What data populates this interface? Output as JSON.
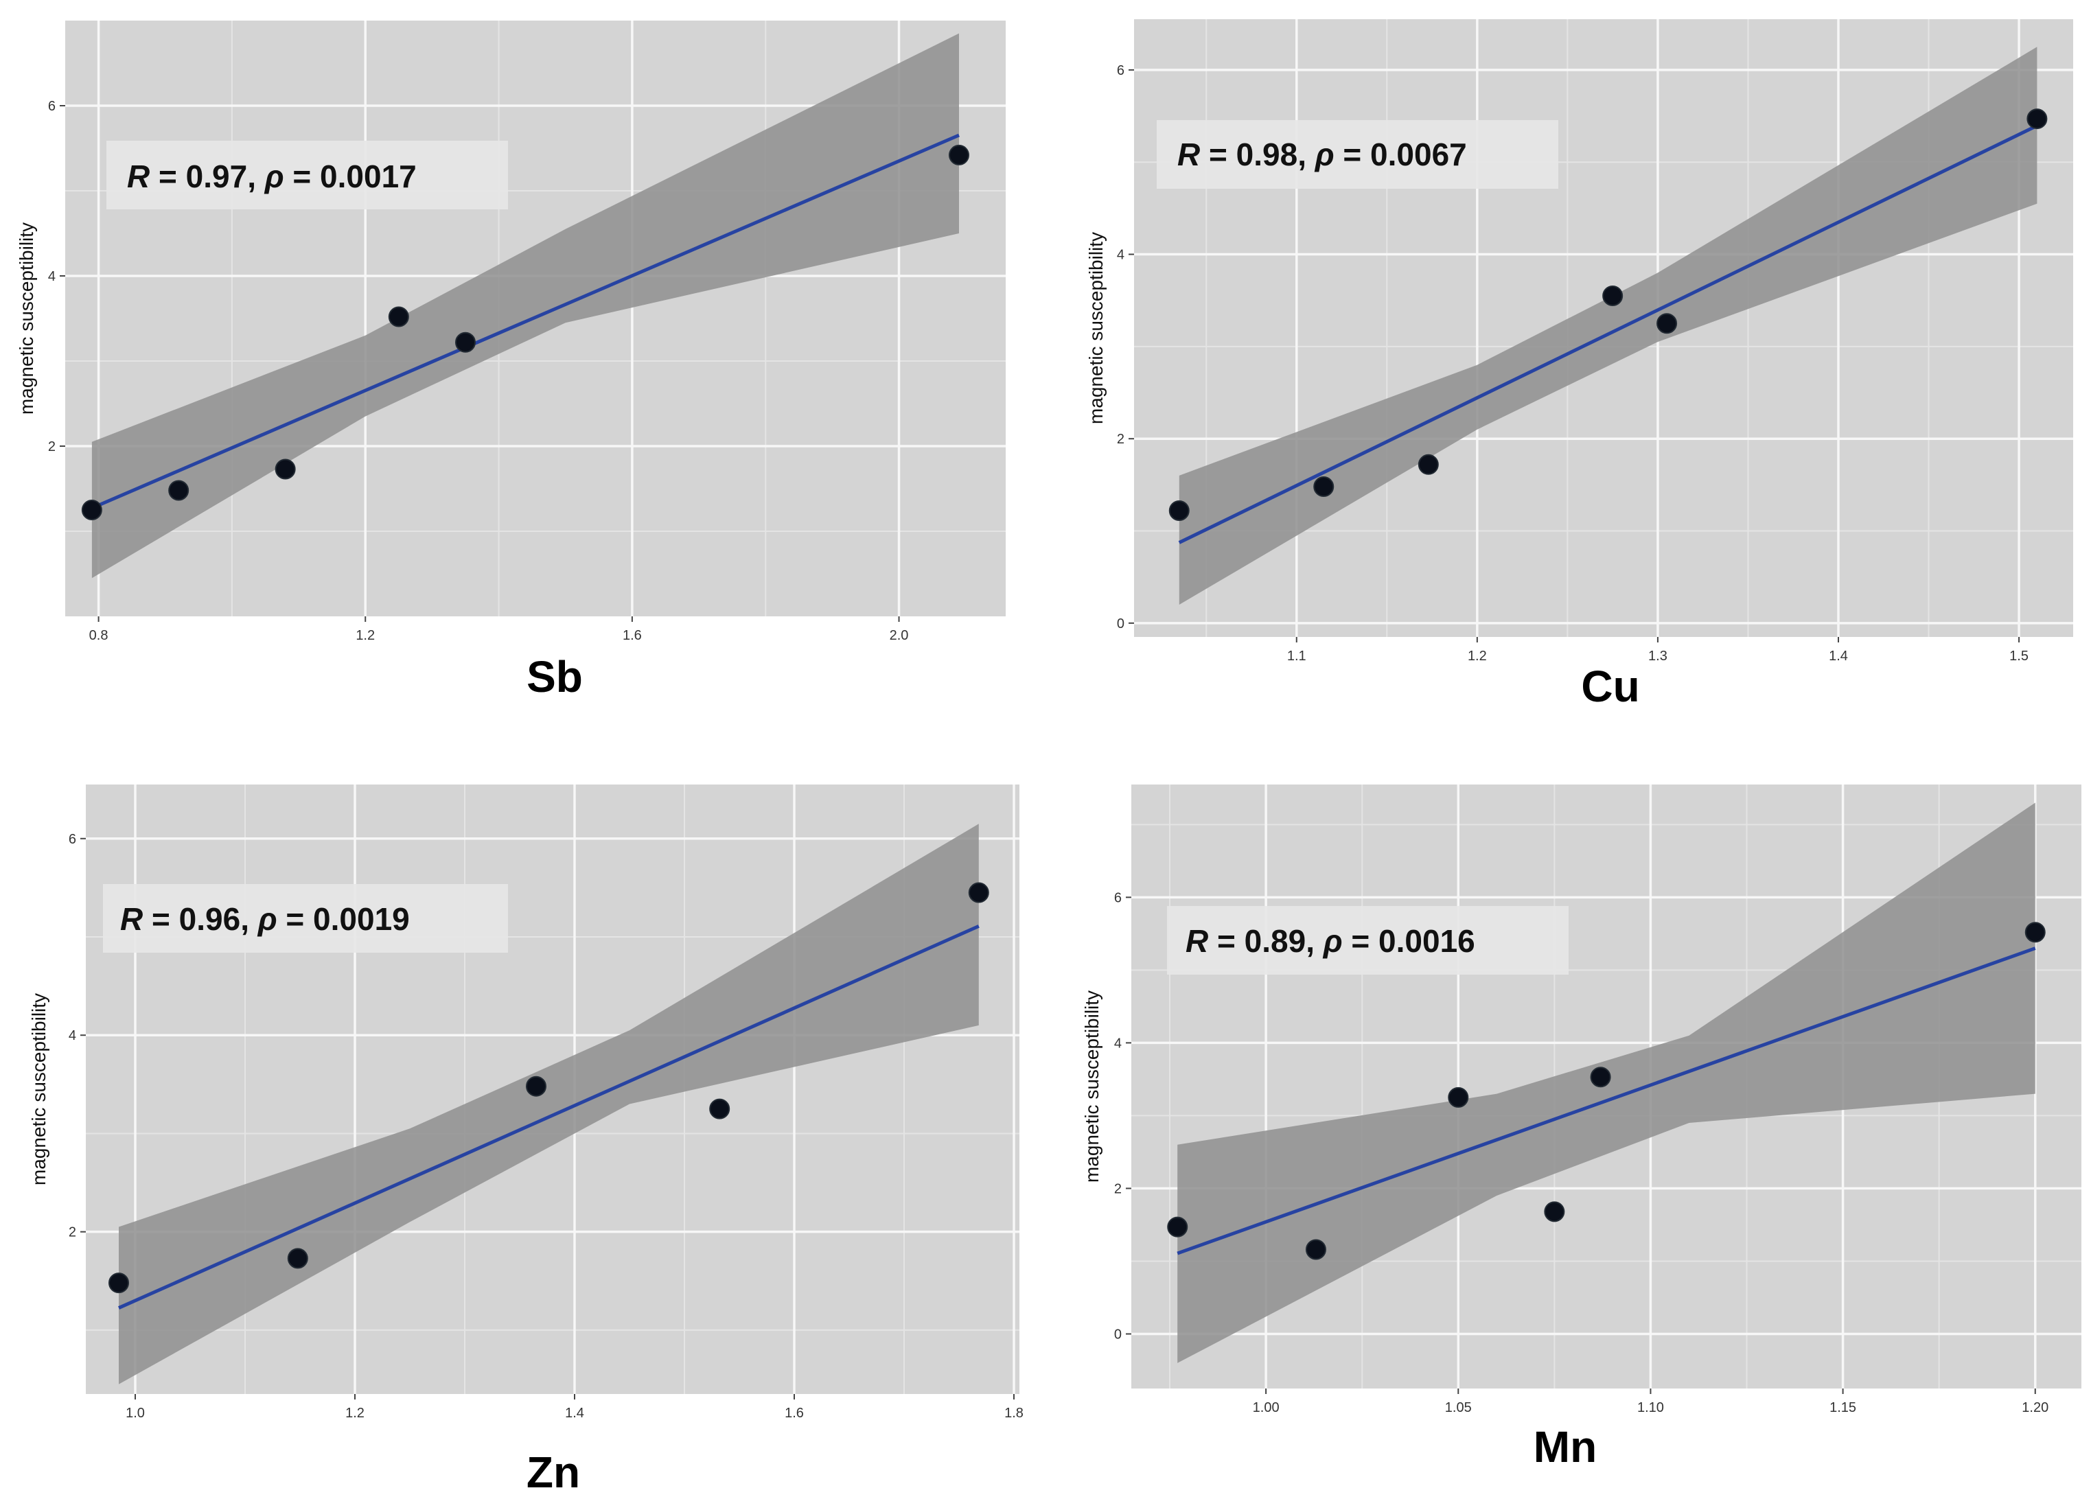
{
  "colors": {
    "panel_bg": "#d4d4d4",
    "grid_major": "#f7f7f7",
    "grid_minor": "#e4e4e4",
    "ribbon": "#8f8f8f",
    "fit_line": "#2743a2",
    "point": "#0a0f1a",
    "label_bg": "#e6e6e6"
  },
  "chart_data": [
    {
      "type": "scatter",
      "id": "sb",
      "title": "",
      "xlabel": "Sb",
      "ylabel": "magnetic susceptibility",
      "annotation": {
        "R_symbol": "R",
        "R_text": " = 0.97, ",
        "p_symbol": "ρ",
        "p_text": " = 0.0017"
      },
      "xlim": [
        0.75,
        2.16
      ],
      "ylim": [
        0.0,
        7.0
      ],
      "xticks": [
        0.8,
        1.2,
        1.6,
        2.0
      ],
      "xtick_labels": [
        "0.8",
        "1.2",
        "1.6",
        "2.0"
      ],
      "yticks": [
        2,
        4,
        6
      ],
      "ytick_labels": [
        "2",
        "4",
        "6"
      ],
      "points": [
        [
          0.79,
          1.25
        ],
        [
          0.92,
          1.48
        ],
        [
          1.08,
          1.73
        ],
        [
          1.25,
          3.52
        ],
        [
          1.35,
          3.22
        ],
        [
          2.09,
          5.42
        ]
      ],
      "fit": {
        "slope": 3.37,
        "intercept": -1.39,
        "x_range": [
          0.79,
          2.09
        ]
      },
      "ci": {
        "x": [
          0.79,
          1.2,
          1.5,
          2.09
        ],
        "lower": [
          0.45,
          2.35,
          3.45,
          4.5
        ],
        "upper": [
          2.05,
          3.3,
          4.55,
          6.85
        ]
      }
    },
    {
      "type": "scatter",
      "id": "cu",
      "title": "",
      "xlabel": "Cu",
      "ylabel": "magnetic susceptibility",
      "annotation": {
        "R_symbol": "R",
        "R_text": " = 0.98, ",
        "p_symbol": "ρ",
        "p_text": " = 0.0067"
      },
      "xlim": [
        1.01,
        1.53
      ],
      "ylim": [
        -0.15,
        6.55
      ],
      "xticks": [
        1.1,
        1.2,
        1.3,
        1.4,
        1.5
      ],
      "xtick_labels": [
        "1.1",
        "1.2",
        "1.3",
        "1.4",
        "1.5"
      ],
      "yticks": [
        0,
        2,
        4,
        6
      ],
      "ytick_labels": [
        "0",
        "2",
        "4",
        "6"
      ],
      "points": [
        [
          1.035,
          1.22
        ],
        [
          1.115,
          1.48
        ],
        [
          1.173,
          1.72
        ],
        [
          1.275,
          3.55
        ],
        [
          1.305,
          3.25
        ],
        [
          1.51,
          5.47
        ]
      ],
      "fit": {
        "slope": 9.52,
        "intercept": -8.98,
        "x_range": [
          1.035,
          1.51
        ]
      },
      "ci": {
        "x": [
          1.035,
          1.2,
          1.3,
          1.51
        ],
        "lower": [
          0.2,
          2.1,
          3.05,
          4.55
        ],
        "upper": [
          1.6,
          2.8,
          3.8,
          6.25
        ]
      }
    },
    {
      "type": "scatter",
      "id": "zn",
      "title": "",
      "xlabel": "Zn",
      "ylabel": "magnetic susceptibility",
      "annotation": {
        "R_symbol": "R",
        "R_text": " = 0.96, ",
        "p_symbol": "ρ",
        "p_text": " = 0.0019"
      },
      "xlim": [
        0.955,
        1.805
      ],
      "ylim": [
        0.35,
        6.55
      ],
      "xticks": [
        1.0,
        1.2,
        1.4,
        1.6,
        1.8
      ],
      "xtick_labels": [
        "1.0",
        "1.2",
        "1.4",
        "1.6",
        "1.8"
      ],
      "yticks": [
        2,
        4,
        6
      ],
      "ytick_labels": [
        "2",
        "4",
        "6"
      ],
      "points": [
        [
          0.985,
          1.48
        ],
        [
          1.148,
          1.73
        ],
        [
          1.365,
          3.48
        ],
        [
          1.532,
          3.25
        ],
        [
          1.768,
          5.45
        ]
      ],
      "fit": {
        "slope": 4.96,
        "intercept": -3.66,
        "x_range": [
          0.985,
          1.768
        ]
      },
      "ci": {
        "x": [
          0.985,
          1.25,
          1.45,
          1.768
        ],
        "lower": [
          0.45,
          2.1,
          3.3,
          4.1
        ],
        "upper": [
          2.05,
          3.05,
          4.05,
          6.15
        ]
      }
    },
    {
      "type": "scatter",
      "id": "mn",
      "title": "",
      "xlabel": "Mn",
      "ylabel": "magnetic susceptibility",
      "annotation": {
        "R_symbol": "R",
        "R_text": " = 0.89, ",
        "p_symbol": "ρ",
        "p_text": " = 0.0016"
      },
      "xlim": [
        0.965,
        1.212
      ],
      "ylim": [
        -0.75,
        7.55
      ],
      "xticks": [
        1.0,
        1.05,
        1.1,
        1.15,
        1.2
      ],
      "xtick_labels": [
        "1.00",
        "1.05",
        "1.10",
        "1.15",
        "1.20"
      ],
      "yticks": [
        0,
        2,
        4,
        6
      ],
      "ytick_labels": [
        "0",
        "2",
        "4",
        "6"
      ],
      "points": [
        [
          0.977,
          1.47
        ],
        [
          1.013,
          1.16
        ],
        [
          1.05,
          3.25
        ],
        [
          1.075,
          1.68
        ],
        [
          1.087,
          3.53
        ],
        [
          1.2,
          5.52
        ]
      ],
      "fit": {
        "slope": 18.8,
        "intercept": -17.26,
        "x_range": [
          0.977,
          1.2
        ]
      },
      "ci": {
        "x": [
          0.977,
          1.06,
          1.11,
          1.2
        ],
        "lower": [
          -0.4,
          1.9,
          2.9,
          3.3
        ],
        "upper": [
          2.6,
          3.3,
          4.1,
          7.3
        ]
      }
    }
  ]
}
